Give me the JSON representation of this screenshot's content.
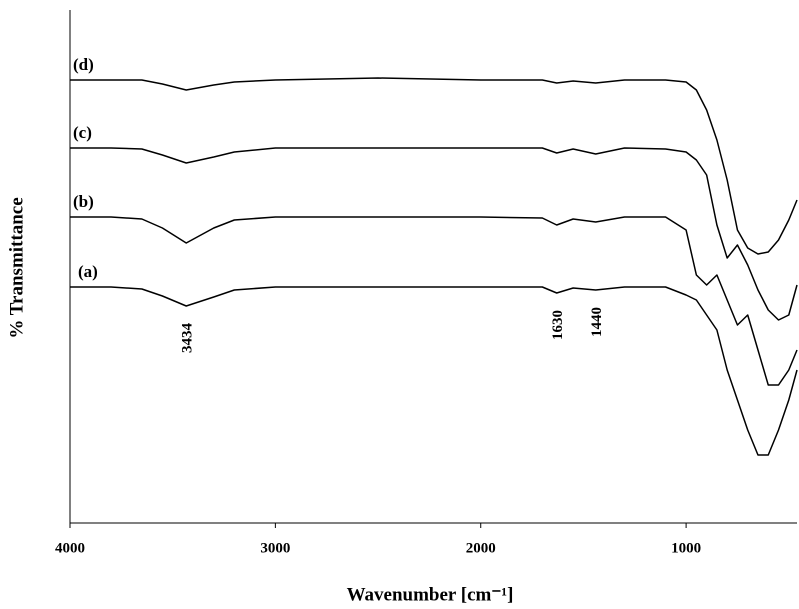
{
  "chart_data": {
    "type": "line",
    "x_label": "Wavenumber [cm⁻¹]",
    "y_label": "% Transmittance",
    "x": [
      4000,
      3800,
      3650,
      3550,
      3434,
      3300,
      3200,
      3000,
      2500,
      2000,
      1700,
      1630,
      1550,
      1440,
      1300,
      1100,
      1000,
      950,
      900,
      850,
      800,
      750,
      700,
      650,
      600,
      550,
      500,
      460
    ],
    "xlim": [
      4000,
      460
    ],
    "xticks": [
      4000,
      3000,
      2000,
      1000
    ],
    "ylim": [
      0,
      513
    ],
    "color": "#000000",
    "series": [
      {
        "name": "(a)",
        "values": [
          236,
          236,
          234,
          227,
          217,
          226,
          233,
          236,
          236,
          236,
          236,
          230,
          235,
          233,
          236,
          236,
          228,
          223,
          208,
          193,
          153,
          123,
          93,
          68,
          68,
          93,
          123,
          153
        ]
      },
      {
        "name": "(b)",
        "values": [
          306,
          306,
          304,
          295,
          280,
          295,
          303,
          306,
          306,
          306,
          305,
          298,
          304,
          301,
          306,
          306,
          293,
          248,
          238,
          248,
          223,
          198,
          208,
          173,
          138,
          138,
          153,
          173
        ]
      },
      {
        "name": "(c)",
        "values": [
          375,
          375,
          374,
          368,
          360,
          366,
          371,
          375,
          375,
          375,
          375,
          370,
          374,
          369,
          375,
          374,
          371,
          363,
          348,
          298,
          265,
          278,
          258,
          233,
          213,
          203,
          208,
          238
        ]
      },
      {
        "name": "(d)",
        "values": [
          443,
          443,
          443,
          439,
          433,
          438,
          441,
          443,
          445,
          443,
          443,
          440,
          442,
          440,
          443,
          443,
          441,
          433,
          413,
          383,
          343,
          293,
          275,
          269,
          271,
          283,
          303,
          323
        ]
      }
    ],
    "annotations": [
      "3434",
      "1630",
      "1440"
    ]
  }
}
